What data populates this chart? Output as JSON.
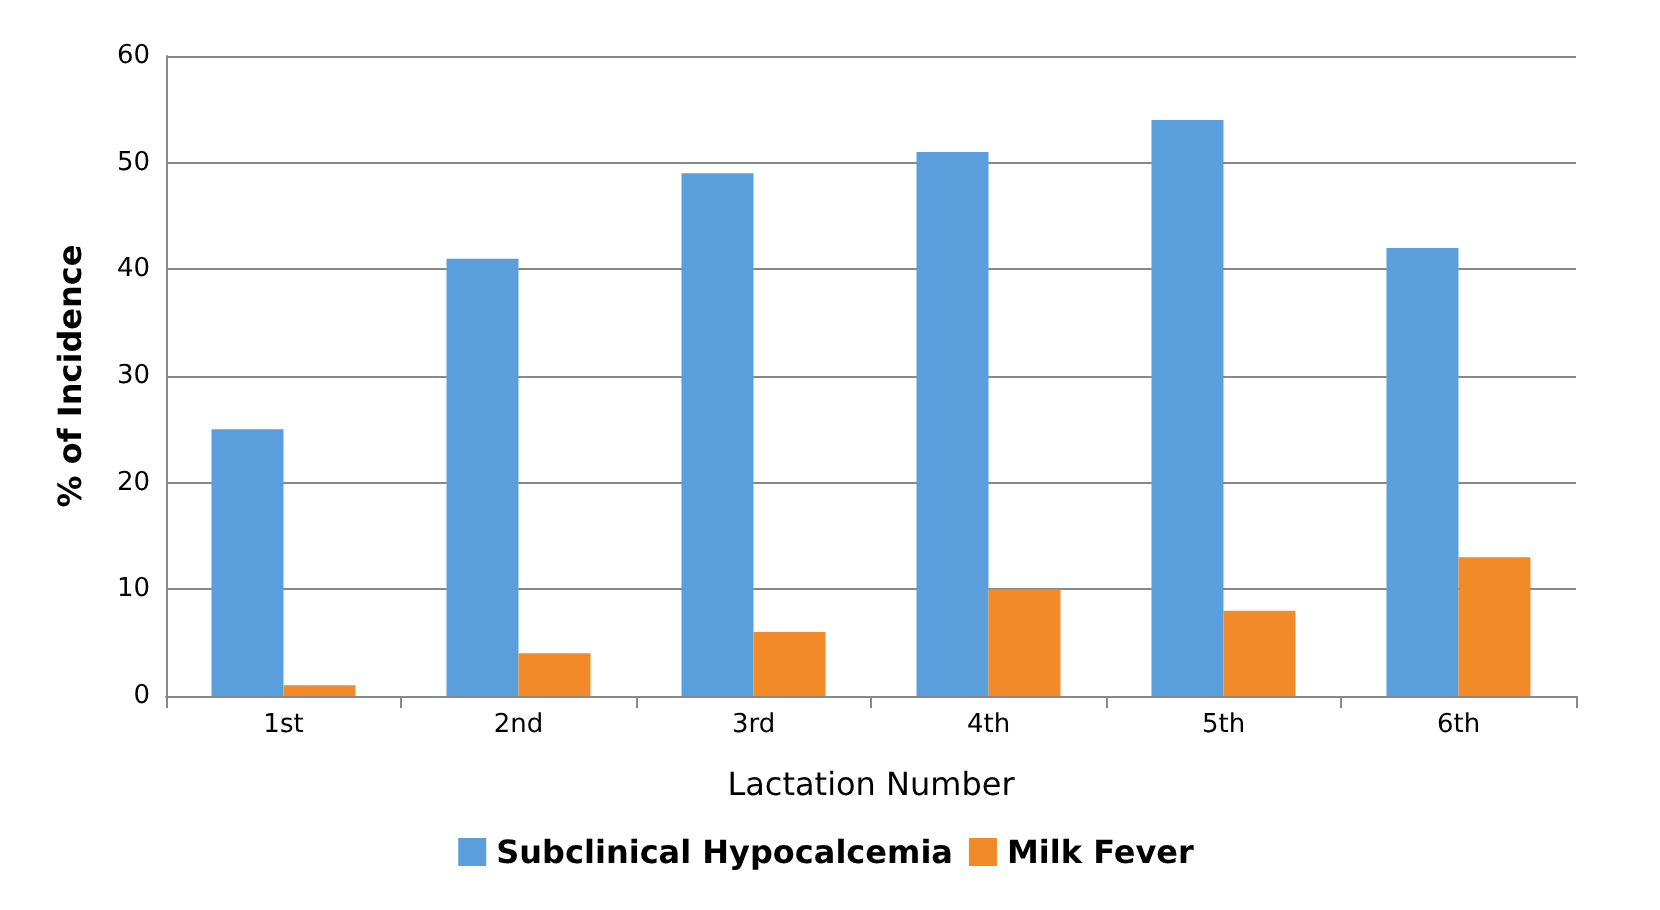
{
  "chart_data": {
    "type": "bar",
    "xlabel": "Lactation Number",
    "ylabel": "% of Incidence",
    "categories": [
      "1st",
      "2nd",
      "3rd",
      "4th",
      "5th",
      "6th"
    ],
    "series": [
      {
        "name": "Subclinical Hypocalcemia",
        "color": "#5a9fdc",
        "values": [
          25,
          41,
          49,
          51,
          54,
          42
        ]
      },
      {
        "name": "Milk Fever",
        "color": "#f28a2a",
        "values": [
          1,
          4,
          6,
          10,
          8,
          13
        ]
      }
    ],
    "ylim": [
      0,
      60
    ],
    "yticks": [
      0,
      10,
      20,
      30,
      40,
      50,
      60
    ],
    "grid": "y",
    "legend": "bottom"
  }
}
